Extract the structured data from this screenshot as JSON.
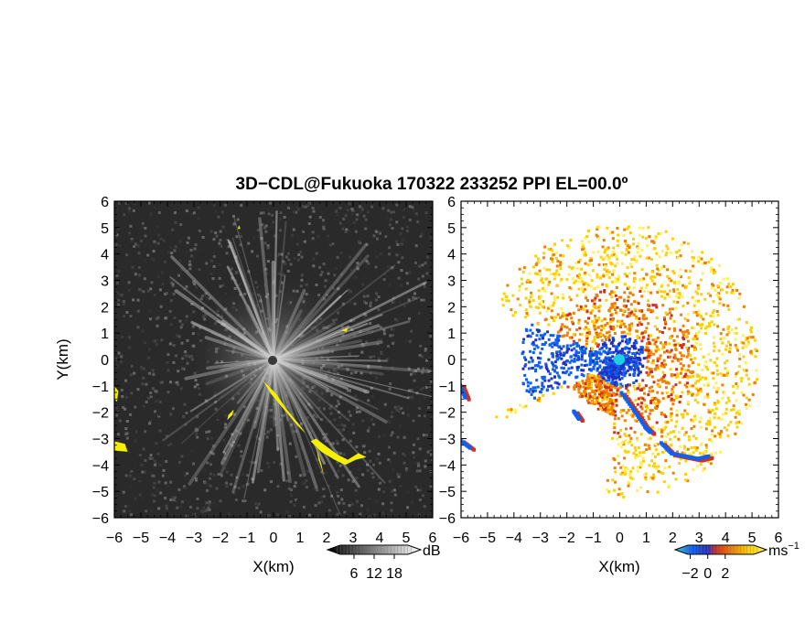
{
  "title": "3D−CDL@Fukuoka 170322 233252 PPI EL=00.0º",
  "chart_data": [
    {
      "type": "heatmap",
      "name": "reflectivity-ppi",
      "xlabel": "X(km)",
      "ylabel": "Y(km)",
      "xlim": [
        -6,
        6
      ],
      "ylim": [
        -6,
        6
      ],
      "xticks": [
        "−6",
        "−5",
        "−4",
        "−3",
        "−2",
        "−1",
        "0",
        "1",
        "2",
        "3",
        "4",
        "5",
        "6"
      ],
      "yticks": [
        "−6",
        "−5",
        "−4",
        "−3",
        "−2",
        "−1",
        "0",
        "1",
        "2",
        "3",
        "4",
        "5",
        "6"
      ],
      "colorbar": {
        "label": "dB",
        "ticks": [
          "6",
          "12",
          "18"
        ],
        "range": [
          0,
          24
        ],
        "colors": [
          "#000000",
          "#ffffff"
        ]
      },
      "highlight_color": "#f4f000",
      "background_color": "#2a2a2a"
    },
    {
      "type": "heatmap",
      "name": "doppler-velocity-ppi",
      "xlabel": "X(km)",
      "ylabel": "",
      "xlim": [
        -6,
        6
      ],
      "ylim": [
        -6,
        6
      ],
      "xticks": [
        "−6",
        "−5",
        "−4",
        "−3",
        "−2",
        "−1",
        "0",
        "1",
        "2",
        "3",
        "4",
        "5",
        "6"
      ],
      "yticks": [
        "−6",
        "−5",
        "−4",
        "−3",
        "−2",
        "−1",
        "0",
        "1",
        "2",
        "3",
        "4",
        "5",
        "6"
      ],
      "colorbar": {
        "label": "ms",
        "label_sup": "−1",
        "ticks": [
          "−2",
          "0",
          "2"
        ],
        "range": [
          -3,
          6
        ],
        "colors": [
          "#40d0e0",
          "#1060f0",
          "#2030c0",
          "#d03020",
          "#f08000",
          "#ffd000",
          "#fff060"
        ]
      }
    }
  ]
}
